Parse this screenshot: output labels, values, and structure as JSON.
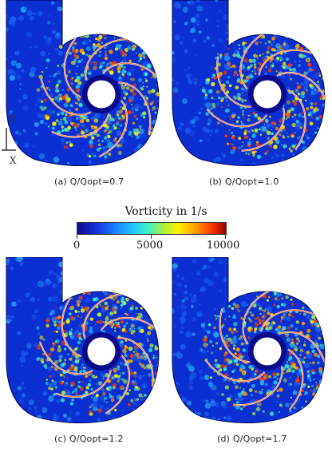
{
  "panels": [
    {
      "id": "a",
      "caption": "(a) Q/Qopt=0.7"
    },
    {
      "id": "b",
      "caption": "(b) Q/Qopt=1.0"
    },
    {
      "id": "c",
      "caption": "(c) Q/Qopt=1.2"
    },
    {
      "id": "d",
      "caption": "(d) Q/Qopt=1.7"
    }
  ],
  "colorbar": {
    "title": "Vorticity in 1/s",
    "ticks": [
      "0",
      "5000",
      "10000"
    ],
    "min": 0,
    "max": 10000,
    "colors": [
      "#0a0a8a",
      "#1a7cff",
      "#3cf0c8",
      "#fff000",
      "#ff3a00",
      "#9c0000"
    ]
  },
  "axes": {
    "vertical": "Z",
    "horizontal": "X"
  }
}
